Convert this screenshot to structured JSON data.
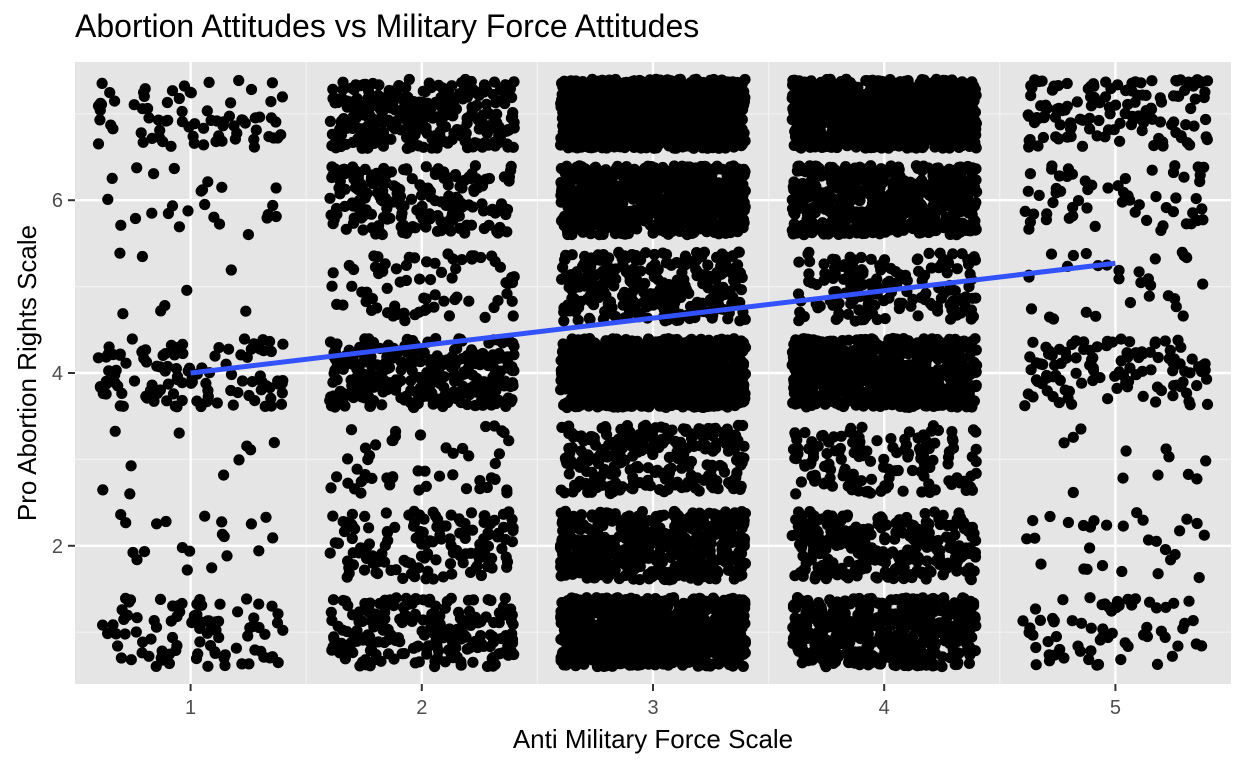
{
  "chart_data": {
    "type": "scatter",
    "title": "Abortion Attitudes vs Military Force Attitudes",
    "xlabel": "Anti Military Force Scale",
    "ylabel": "Pro Abortion Rights Scale",
    "xlim": [
      0.5,
      5.5
    ],
    "ylim": [
      0.4,
      7.6
    ],
    "x_ticks": [
      1,
      2,
      3,
      4,
      5
    ],
    "x_tick_labels": [
      "1",
      "2",
      "3",
      "4",
      "5"
    ],
    "y_ticks": [
      2,
      4,
      6
    ],
    "y_tick_labels": [
      "2",
      "4",
      "6"
    ],
    "x_minor_breaks": [
      1.5,
      2.5,
      3.5,
      4.5
    ],
    "y_minor_breaks": [
      1,
      3,
      5,
      7
    ],
    "grid": true,
    "jitter": {
      "x": 0.4,
      "y": 0.4
    },
    "point_color": "#000000",
    "panel_background": "#e5e5e5",
    "points_by_cell": {
      "x_levels": [
        1,
        2,
        3,
        4,
        5
      ],
      "y_levels": [
        1,
        2,
        3,
        4,
        5,
        6,
        7
      ],
      "counts": [
        [
          90,
          20,
          10,
          110,
          8,
          25,
          75
        ],
        [
          220,
          140,
          50,
          300,
          75,
          200,
          300
        ],
        [
          900,
          500,
          250,
          1100,
          300,
          700,
          1100
        ],
        [
          450,
          280,
          140,
          700,
          170,
          550,
          900
        ],
        [
          65,
          30,
          12,
          110,
          30,
          60,
          130
        ]
      ]
    },
    "series": [
      {
        "type": "line",
        "method": "linear regression fit",
        "color": "#3251ff",
        "x": [
          1,
          5
        ],
        "y": [
          4.0,
          5.27
        ]
      }
    ]
  }
}
